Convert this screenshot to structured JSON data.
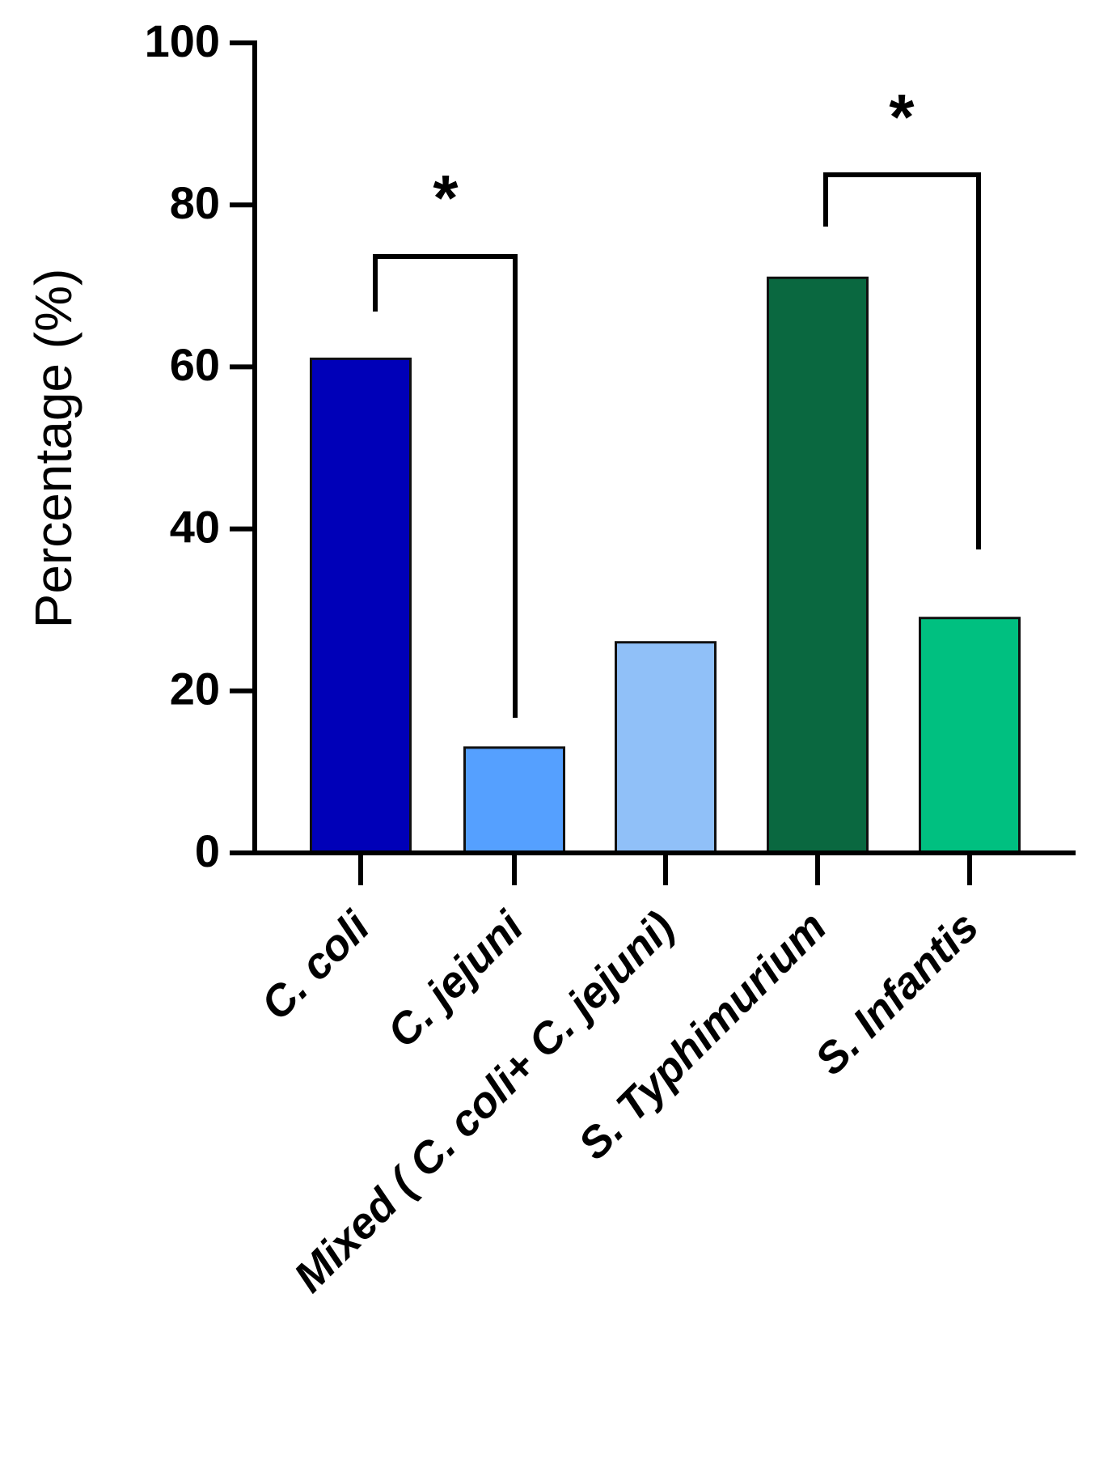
{
  "chart_data": {
    "type": "bar",
    "y_label": "Percentage (%)",
    "categories": [
      "C. coli",
      "C. jejuni",
      "Mixed ( C. coli+ C. jejuni)",
      "S. Typhimurium",
      "S. Infantis"
    ],
    "values": [
      61,
      13,
      26,
      71,
      29
    ],
    "colors": [
      "#0000b8",
      "#55a0ff",
      "#90c0f8",
      "#0a6840",
      "#00c080"
    ],
    "ylim": [
      0,
      100
    ],
    "yticks": [
      0,
      20,
      40,
      60,
      80,
      100
    ],
    "annotations": [
      "*",
      "*"
    ]
  }
}
